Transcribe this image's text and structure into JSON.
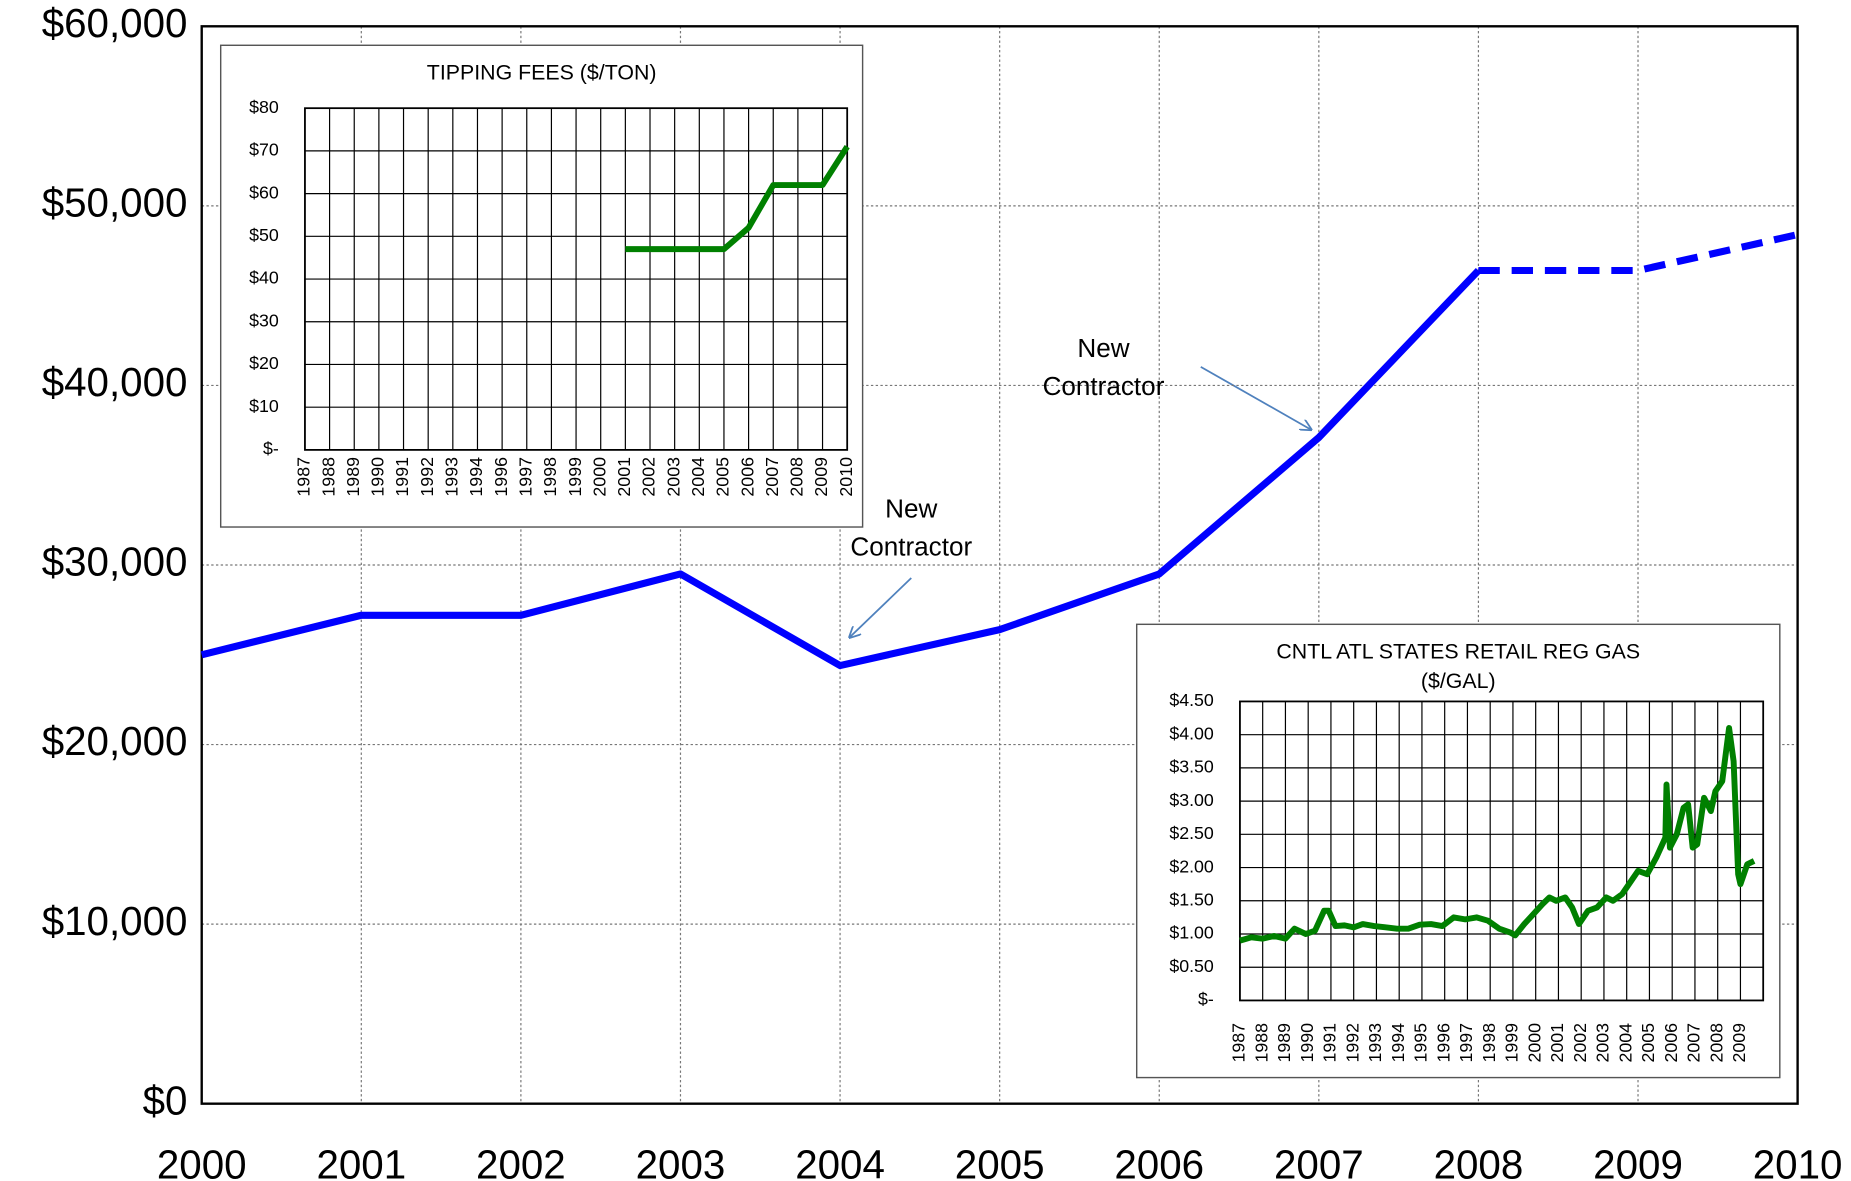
{
  "chart_data": [
    {
      "type": "line",
      "categories": [
        "2000",
        "2001",
        "2002",
        "2003",
        "2004",
        "2005",
        "2006",
        "2007",
        "2008",
        "2009",
        "2010"
      ],
      "series": [
        {
          "color": "#0000ff",
          "style": "solid",
          "values": [
            25000,
            27200,
            27200,
            29500,
            24400,
            26400,
            29500,
            37100,
            46400,
            null,
            null
          ]
        },
        {
          "color": "#0000ff",
          "style": "dashed",
          "values": [
            null,
            null,
            null,
            null,
            null,
            null,
            null,
            null,
            46400,
            46400,
            48400
          ]
        }
      ],
      "ylim": [
        0,
        60000
      ],
      "yticks": [
        {
          "value": 0,
          "label": "$0"
        },
        {
          "value": 10000,
          "label": "$10,000"
        },
        {
          "value": 20000,
          "label": "$20,000"
        },
        {
          "value": 30000,
          "label": "$30,000"
        },
        {
          "value": 40000,
          "label": "$40,000"
        },
        {
          "value": 50000,
          "label": "$50,000"
        },
        {
          "value": 60000,
          "label": "$60,000"
        }
      ],
      "grid": true,
      "annotations": [
        {
          "lines": [
            "New",
            "Contractor"
          ]
        },
        {
          "lines": [
            "New",
            "Contractor"
          ]
        }
      ]
    },
    {
      "type": "line",
      "title": [
        "TIPPING FEES ($/TON)"
      ],
      "categories": [
        "1987",
        "1988",
        "1989",
        "1990",
        "1991",
        "1992",
        "1993",
        "1994",
        "1996",
        "1997",
        "1998",
        "1999",
        "2000",
        "2001",
        "2002",
        "2003",
        "2004",
        "2005",
        "2006",
        "2007",
        "2008",
        "2009",
        "2010"
      ],
      "series": [
        {
          "color": "#008000",
          "values": [
            null,
            null,
            null,
            null,
            null,
            null,
            null,
            null,
            null,
            null,
            null,
            null,
            null,
            47,
            47,
            47,
            47,
            47,
            52,
            62,
            62,
            62,
            71
          ]
        }
      ],
      "ylim": [
        0,
        80
      ],
      "yticks": [
        {
          "value": 0,
          "label": "$-"
        },
        {
          "value": 10,
          "label": "$10"
        },
        {
          "value": 20,
          "label": "$20"
        },
        {
          "value": 30,
          "label": "$30"
        },
        {
          "value": 40,
          "label": "$40"
        },
        {
          "value": 50,
          "label": "$50"
        },
        {
          "value": 60,
          "label": "$60"
        },
        {
          "value": 70,
          "label": "$70"
        },
        {
          "value": 80,
          "label": "$80"
        }
      ],
      "grid": true
    },
    {
      "type": "line",
      "title": [
        "CNTL ATL STATES RETAIL REG GAS",
        "($/GAL)"
      ],
      "series": [
        {
          "color": "#008000",
          "x": [
            1987.0,
            1987.5,
            1988.0,
            1988.5,
            1989.0,
            1989.4,
            1989.9,
            1990.3,
            1990.7,
            1990.9,
            1991.2,
            1991.6,
            1992.0,
            1992.4,
            1992.9,
            1993.4,
            1993.9,
            1994.4,
            1994.9,
            1995.4,
            1995.9,
            1996.4,
            1996.9,
            1997.4,
            1997.9,
            1998.4,
            1998.9,
            1999.1,
            1999.5,
            1999.9,
            2000.3,
            2000.6,
            2000.9,
            2001.3,
            2001.6,
            2001.9,
            2002.3,
            2002.7,
            2003.1,
            2003.4,
            2003.8,
            2004.2,
            2004.5,
            2004.9,
            2005.3,
            2005.7,
            2005.75,
            2005.9,
            2006.2,
            2006.5,
            2006.7,
            2006.9,
            2007.1,
            2007.4,
            2007.7,
            2007.9,
            2008.2,
            2008.5,
            2008.7,
            2008.9,
            2009.0,
            2009.3,
            2009.6
          ],
          "values": [
            0.9,
            0.95,
            0.93,
            0.97,
            0.93,
            1.08,
            1.0,
            1.05,
            1.35,
            1.35,
            1.12,
            1.13,
            1.1,
            1.15,
            1.12,
            1.1,
            1.08,
            1.08,
            1.14,
            1.15,
            1.12,
            1.25,
            1.22,
            1.25,
            1.2,
            1.08,
            1.02,
            0.98,
            1.15,
            1.3,
            1.45,
            1.55,
            1.5,
            1.55,
            1.4,
            1.15,
            1.35,
            1.4,
            1.55,
            1.5,
            1.6,
            1.8,
            1.95,
            1.9,
            2.15,
            2.45,
            3.25,
            2.3,
            2.5,
            2.9,
            2.95,
            2.3,
            2.35,
            3.05,
            2.85,
            3.15,
            3.3,
            4.1,
            3.6,
            1.9,
            1.75,
            2.05,
            2.1
          ]
        }
      ],
      "xlim": [
        1987,
        2010
      ],
      "xticks": [
        1987,
        1988,
        1989,
        1990,
        1991,
        1992,
        1993,
        1994,
        1995,
        1996,
        1997,
        1998,
        1999,
        2000,
        2001,
        2002,
        2003,
        2004,
        2005,
        2006,
        2007,
        2008,
        2009
      ],
      "ylim": [
        0,
        4.5
      ],
      "yticks": [
        {
          "value": 0,
          "label": "$-"
        },
        {
          "value": 0.5,
          "label": "$0.50"
        },
        {
          "value": 1,
          "label": "$1.00"
        },
        {
          "value": 1.5,
          "label": "$1.50"
        },
        {
          "value": 2,
          "label": "$2.00"
        },
        {
          "value": 2.5,
          "label": "$2.50"
        },
        {
          "value": 3,
          "label": "$3.00"
        },
        {
          "value": 3.5,
          "label": "$3.50"
        },
        {
          "value": 4,
          "label": "$4.00"
        },
        {
          "value": 4.5,
          "label": "$4.50"
        }
      ],
      "grid": true
    }
  ]
}
